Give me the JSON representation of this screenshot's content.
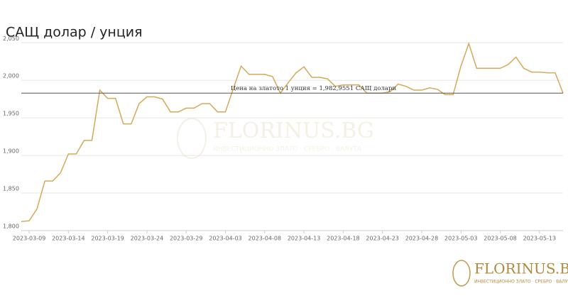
{
  "chart_data": {
    "type": "line",
    "title": "САЩ долар / унция",
    "x": [
      "2023-03-08",
      "2023-03-09",
      "2023-03-10",
      "2023-03-11",
      "2023-03-12",
      "2023-03-13",
      "2023-03-14",
      "2023-03-15",
      "2023-03-16",
      "2023-03-17",
      "2023-03-18",
      "2023-03-19",
      "2023-03-20",
      "2023-03-21",
      "2023-03-22",
      "2023-03-23",
      "2023-03-24",
      "2023-03-25",
      "2023-03-26",
      "2023-03-27",
      "2023-03-28",
      "2023-03-29",
      "2023-03-30",
      "2023-03-31",
      "2023-04-01",
      "2023-04-02",
      "2023-04-03",
      "2023-04-04",
      "2023-04-05",
      "2023-04-06",
      "2023-04-07",
      "2023-04-08",
      "2023-04-09",
      "2023-04-10",
      "2023-04-11",
      "2023-04-12",
      "2023-04-13",
      "2023-04-14",
      "2023-04-15",
      "2023-04-16",
      "2023-04-17",
      "2023-04-18",
      "2023-04-19",
      "2023-04-20",
      "2023-04-21",
      "2023-04-22",
      "2023-04-23",
      "2023-04-24",
      "2023-04-25",
      "2023-04-26",
      "2023-04-27",
      "2023-04-28",
      "2023-04-29",
      "2023-04-30",
      "2023-05-01",
      "2023-05-02",
      "2023-05-03",
      "2023-05-04",
      "2023-05-05",
      "2023-05-06",
      "2023-05-07",
      "2023-05-08",
      "2023-05-09",
      "2023-05-10",
      "2023-05-11",
      "2023-05-12",
      "2023-05-13",
      "2023-05-14",
      "2023-05-15",
      "2023-05-16"
    ],
    "series": [
      {
        "name": "САЩ долар / унция",
        "color": "#d4a95a",
        "values": [
          1812,
          1813,
          1829,
          1866,
          1866,
          1877,
          1902,
          1902,
          1920,
          1920,
          1987,
          1976,
          1976,
          1942,
          1942,
          1969,
          1978,
          1978,
          1975,
          1958,
          1958,
          1963,
          1963,
          1969,
          1969,
          1958,
          1958,
          1989,
          2019,
          2008,
          2008,
          2008,
          2005,
          1983,
          1997,
          2010,
          2018,
          2004,
          2004,
          2002,
          1992,
          1994,
          1994,
          1994,
          1983,
          1983,
          1983,
          1985,
          1995,
          1992,
          1987,
          1987,
          1990,
          1988,
          1981,
          1981,
          2019,
          2049,
          2016,
          2016,
          2016,
          2016,
          2021,
          2031,
          2016,
          2011,
          2011,
          2010,
          2010,
          1983
        ]
      }
    ],
    "xticks": [
      "2023-03-09",
      "2023-03-14",
      "2023-03-19",
      "2023-03-24",
      "2023-03-29",
      "2023-04-03",
      "2023-04-08",
      "2023-04-13",
      "2023-04-18",
      "2023-04-23",
      "2023-04-28",
      "2023-05-03",
      "2023-05-08",
      "2023-05-13"
    ],
    "ylim": [
      1800,
      2055
    ],
    "yticks": [
      {
        "value": 1800,
        "label": "1,800"
      },
      {
        "value": 1850,
        "label": "1,850"
      },
      {
        "value": 1900,
        "label": "1,900"
      },
      {
        "value": 1950,
        "label": "1,950"
      },
      {
        "value": 2000,
        "label": "2,000"
      },
      {
        "value": 2050,
        "label": "2,050"
      }
    ],
    "grid": true,
    "reference": {
      "value": 1982.9551,
      "label": "Цена на златото 1 унция = 1,982,9551 САЩ долари",
      "color": "#555"
    },
    "watermark": "FLORINUS.BG",
    "watermark_subtitle": "ИНВЕСТИЦИОННО ЗЛАТО · СРЕБРО · ВАЛУТА"
  }
}
